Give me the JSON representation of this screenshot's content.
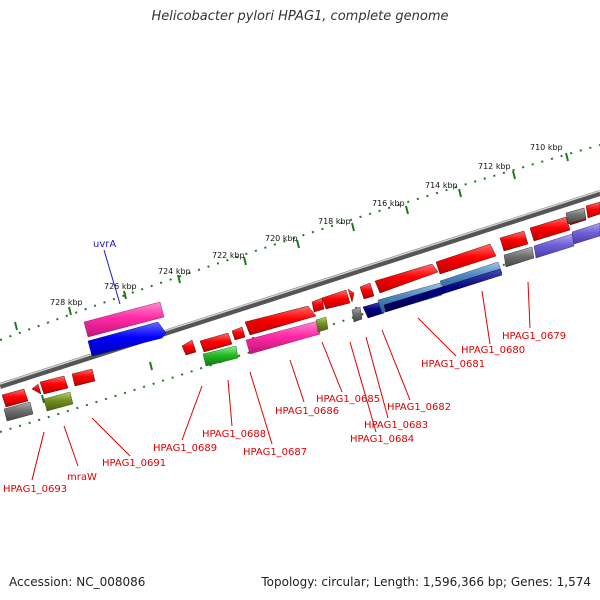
{
  "title": "Helicobacter pylori HPAG1, complete genome",
  "footer": {
    "accession": "Accession: NC_008086",
    "summary": "Topology: circular; Length: 1,596,366 bp; Genes: 1,574"
  },
  "colors": {
    "label_red": "#e00000",
    "label_blue": "#1a1ad0",
    "backbone": "#8a8a8a",
    "tick": "#1f7a1f"
  },
  "scale_labels": [
    "710 kbp",
    "712 kbp",
    "714 kbp",
    "716 kbp",
    "718 kbp",
    "720 kbp",
    "722 kbp",
    "724 kbp",
    "726 kbp",
    "728 kbp"
  ],
  "gene_labels": [
    {
      "text": "uvrA",
      "color": "blue"
    },
    {
      "text": "HPAG1_0679",
      "color": "red"
    },
    {
      "text": "HPAG1_0680",
      "color": "red"
    },
    {
      "text": "HPAG1_0681",
      "color": "red"
    },
    {
      "text": "HPAG1_0682",
      "color": "red"
    },
    {
      "text": "HPAG1_0683",
      "color": "red"
    },
    {
      "text": "HPAG1_0684",
      "color": "red"
    },
    {
      "text": "HPAG1_0685",
      "color": "red"
    },
    {
      "text": "HPAG1_0686",
      "color": "red"
    },
    {
      "text": "HPAG1_0687",
      "color": "red"
    },
    {
      "text": "HPAG1_0688",
      "color": "red"
    },
    {
      "text": "HPAG1_0689",
      "color": "red"
    },
    {
      "text": "HPAG1_0691",
      "color": "red"
    },
    {
      "text": "mraW",
      "color": "red"
    },
    {
      "text": "HPAG1_0693",
      "color": "red"
    }
  ]
}
